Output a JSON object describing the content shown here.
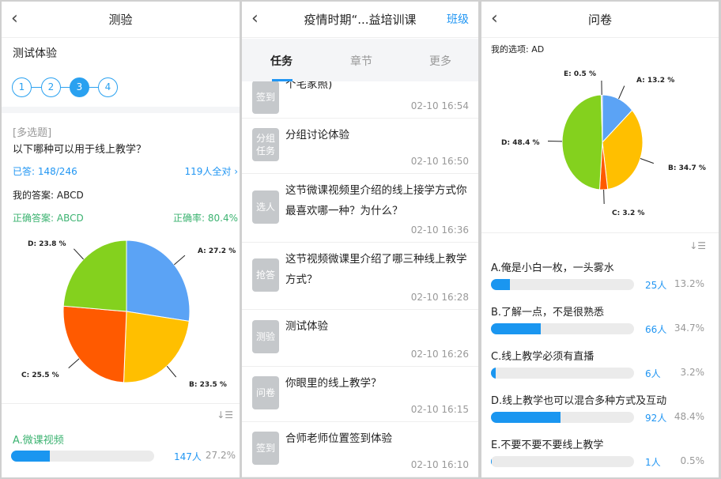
{
  "quiz": {
    "title": "测验",
    "subtitle": "测试体验",
    "steps": [
      "1",
      "2",
      "3",
      "4"
    ],
    "active_step": 3,
    "type": "[多选题]",
    "question": "以下哪种可以用于线上教学？",
    "answered": "已答: 148/246",
    "all_correct": "119人全对 ›",
    "my_answer": "我的答案: ABCD",
    "correct_answer": "正确答案: ABCD",
    "accuracy": "正确率: 80.4%",
    "option_a": {
      "label": "A.微课视频",
      "count": "147人",
      "pct": "27.2%",
      "fraction": 0.272
    }
  },
  "chart_data": [
    {
      "type": "pie",
      "labels": [
        "A: 27.2 %",
        "B: 23.5 %",
        "C: 25.5 %",
        "D: 23.8 %"
      ],
      "values": [
        27.2,
        23.5,
        25.5,
        23.8
      ],
      "colors": [
        "#5ba3f5",
        "#ffbf00",
        "#ff5a00",
        "#84d11e"
      ]
    },
    {
      "type": "pie",
      "labels": [
        "A: 13.2 %",
        "B: 34.7 %",
        "C: 3.2 %",
        "D: 48.4 %",
        "E: 0.5 %"
      ],
      "values": [
        13.2,
        34.7,
        3.2,
        48.4,
        0.5
      ],
      "colors": [
        "#5ba3f5",
        "#ffbf00",
        "#ff5a00",
        "#84d11e",
        "#bbbbbb"
      ]
    }
  ],
  "course": {
    "title": "疫情时期“...益培训课",
    "right": "班级",
    "tabs": [
      "任务",
      "章节",
      "更多"
    ],
    "items": [
      {
        "icon": "签到",
        "title": "个宅家照)",
        "time": "02-10 16:54"
      },
      {
        "icon": "分组任务",
        "title": "分组讨论体验",
        "time": "02-10 16:50"
      },
      {
        "icon": "选人",
        "title": "这节微课视频里介绍的线上接学方式你最喜欢哪一种？为什么？",
        "time": "02-10 16:36"
      },
      {
        "icon": "抢答",
        "title": "这节视频微课里介绍了哪三种线上教学方式？",
        "time": "02-10 16:28"
      },
      {
        "icon": "测验",
        "title": "测试体验",
        "time": "02-10 16:26"
      },
      {
        "icon": "问卷",
        "title": "你眼里的线上教学？",
        "time": "02-10 16:15"
      },
      {
        "icon": "签到",
        "title": "合师老师位置签到体验",
        "time": "02-10 16:10"
      }
    ]
  },
  "survey": {
    "title": "问卷",
    "my_choice": "我的选项: AD",
    "options": [
      {
        "label": "A.俺是小白一枚，一头雾水",
        "count": "25人",
        "pct": "13.2%",
        "fraction": 0.132
      },
      {
        "label": "B.了解一点，不是很熟悉",
        "count": "66人",
        "pct": "34.7%",
        "fraction": 0.347
      },
      {
        "label": "C.线上教学必须有直播",
        "count": "6人",
        "pct": "3.2%",
        "fraction": 0.032
      },
      {
        "label": "D.线上教学也可以混合多种方式及互动",
        "count": "92人",
        "pct": "48.4%",
        "fraction": 0.484
      },
      {
        "label": "E.不要不要不要线上教学",
        "count": "1人",
        "pct": "0.5%",
        "fraction": 0.005
      }
    ]
  }
}
